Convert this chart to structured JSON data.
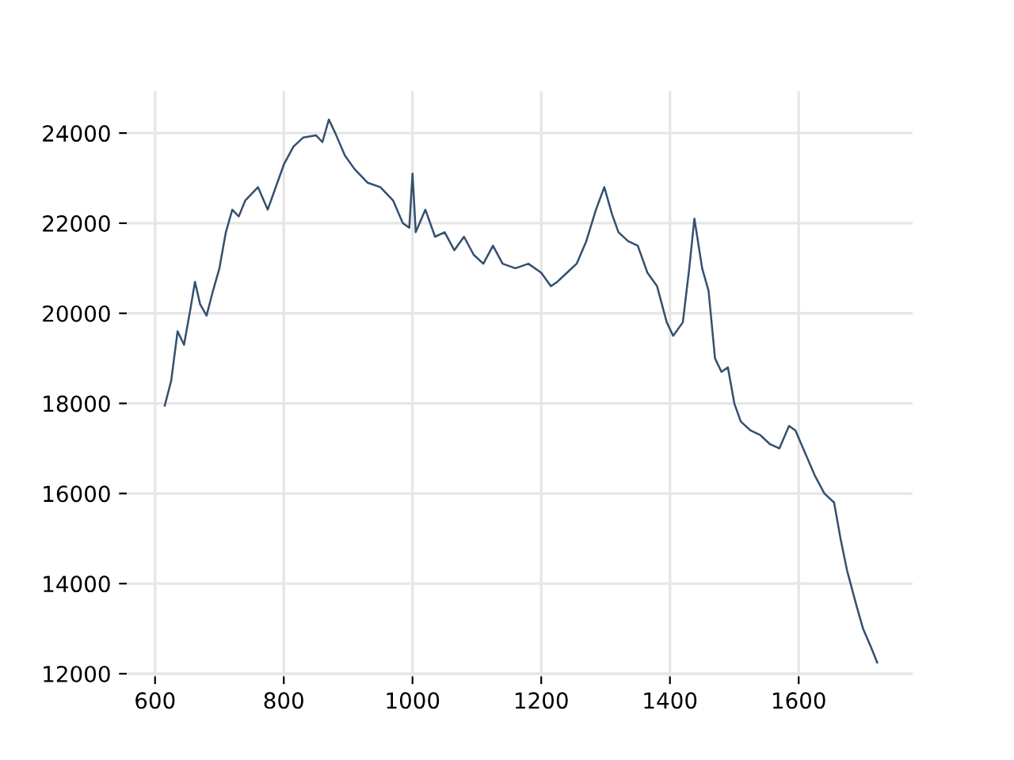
{
  "chart_data": {
    "type": "line",
    "color": "#34506f",
    "grid": true,
    "legend": false,
    "x": [
      615,
      625,
      635,
      645,
      655,
      662,
      670,
      680,
      690,
      700,
      710,
      720,
      730,
      740,
      760,
      775,
      790,
      800,
      815,
      830,
      850,
      860,
      870,
      880,
      895,
      910,
      930,
      950,
      970,
      985,
      995,
      1000,
      1005,
      1020,
      1035,
      1050,
      1065,
      1080,
      1095,
      1110,
      1125,
      1140,
      1160,
      1180,
      1200,
      1215,
      1225,
      1240,
      1255,
      1270,
      1285,
      1298,
      1310,
      1320,
      1335,
      1350,
      1365,
      1380,
      1395,
      1405,
      1420,
      1430,
      1438,
      1450,
      1460,
      1470,
      1480,
      1490,
      1500,
      1510,
      1525,
      1540,
      1555,
      1570,
      1585,
      1595,
      1610,
      1625,
      1640,
      1655,
      1665,
      1675,
      1690,
      1700,
      1712,
      1722
    ],
    "values": [
      17950,
      18500,
      19600,
      19300,
      20100,
      20700,
      20200,
      19950,
      20500,
      21000,
      21800,
      22300,
      22150,
      22500,
      22800,
      22300,
      22900,
      23300,
      23700,
      23900,
      23950,
      23800,
      24300,
      24000,
      23500,
      23200,
      22900,
      22800,
      22500,
      22000,
      21900,
      23100,
      21800,
      22300,
      21700,
      21800,
      21400,
      21700,
      21300,
      21100,
      21500,
      21100,
      21000,
      21100,
      20900,
      20600,
      20700,
      20900,
      21100,
      21600,
      22300,
      22800,
      22200,
      21800,
      21600,
      21500,
      20900,
      20600,
      19800,
      19500,
      19800,
      21000,
      22100,
      21000,
      20500,
      19000,
      18700,
      18800,
      18000,
      17600,
      17400,
      17300,
      17100,
      17000,
      17500,
      17400,
      16900,
      16400,
      16000,
      15800,
      15000,
      14300,
      13500,
      13000,
      12600,
      12250
    ],
    "xlim": [
      556,
      1777
    ],
    "ylim": [
      11940,
      24930
    ],
    "xticks": [
      600,
      800,
      1000,
      1200,
      1400,
      1600
    ],
    "yticks": [
      12000,
      14000,
      16000,
      18000,
      20000,
      22000,
      24000
    ]
  }
}
